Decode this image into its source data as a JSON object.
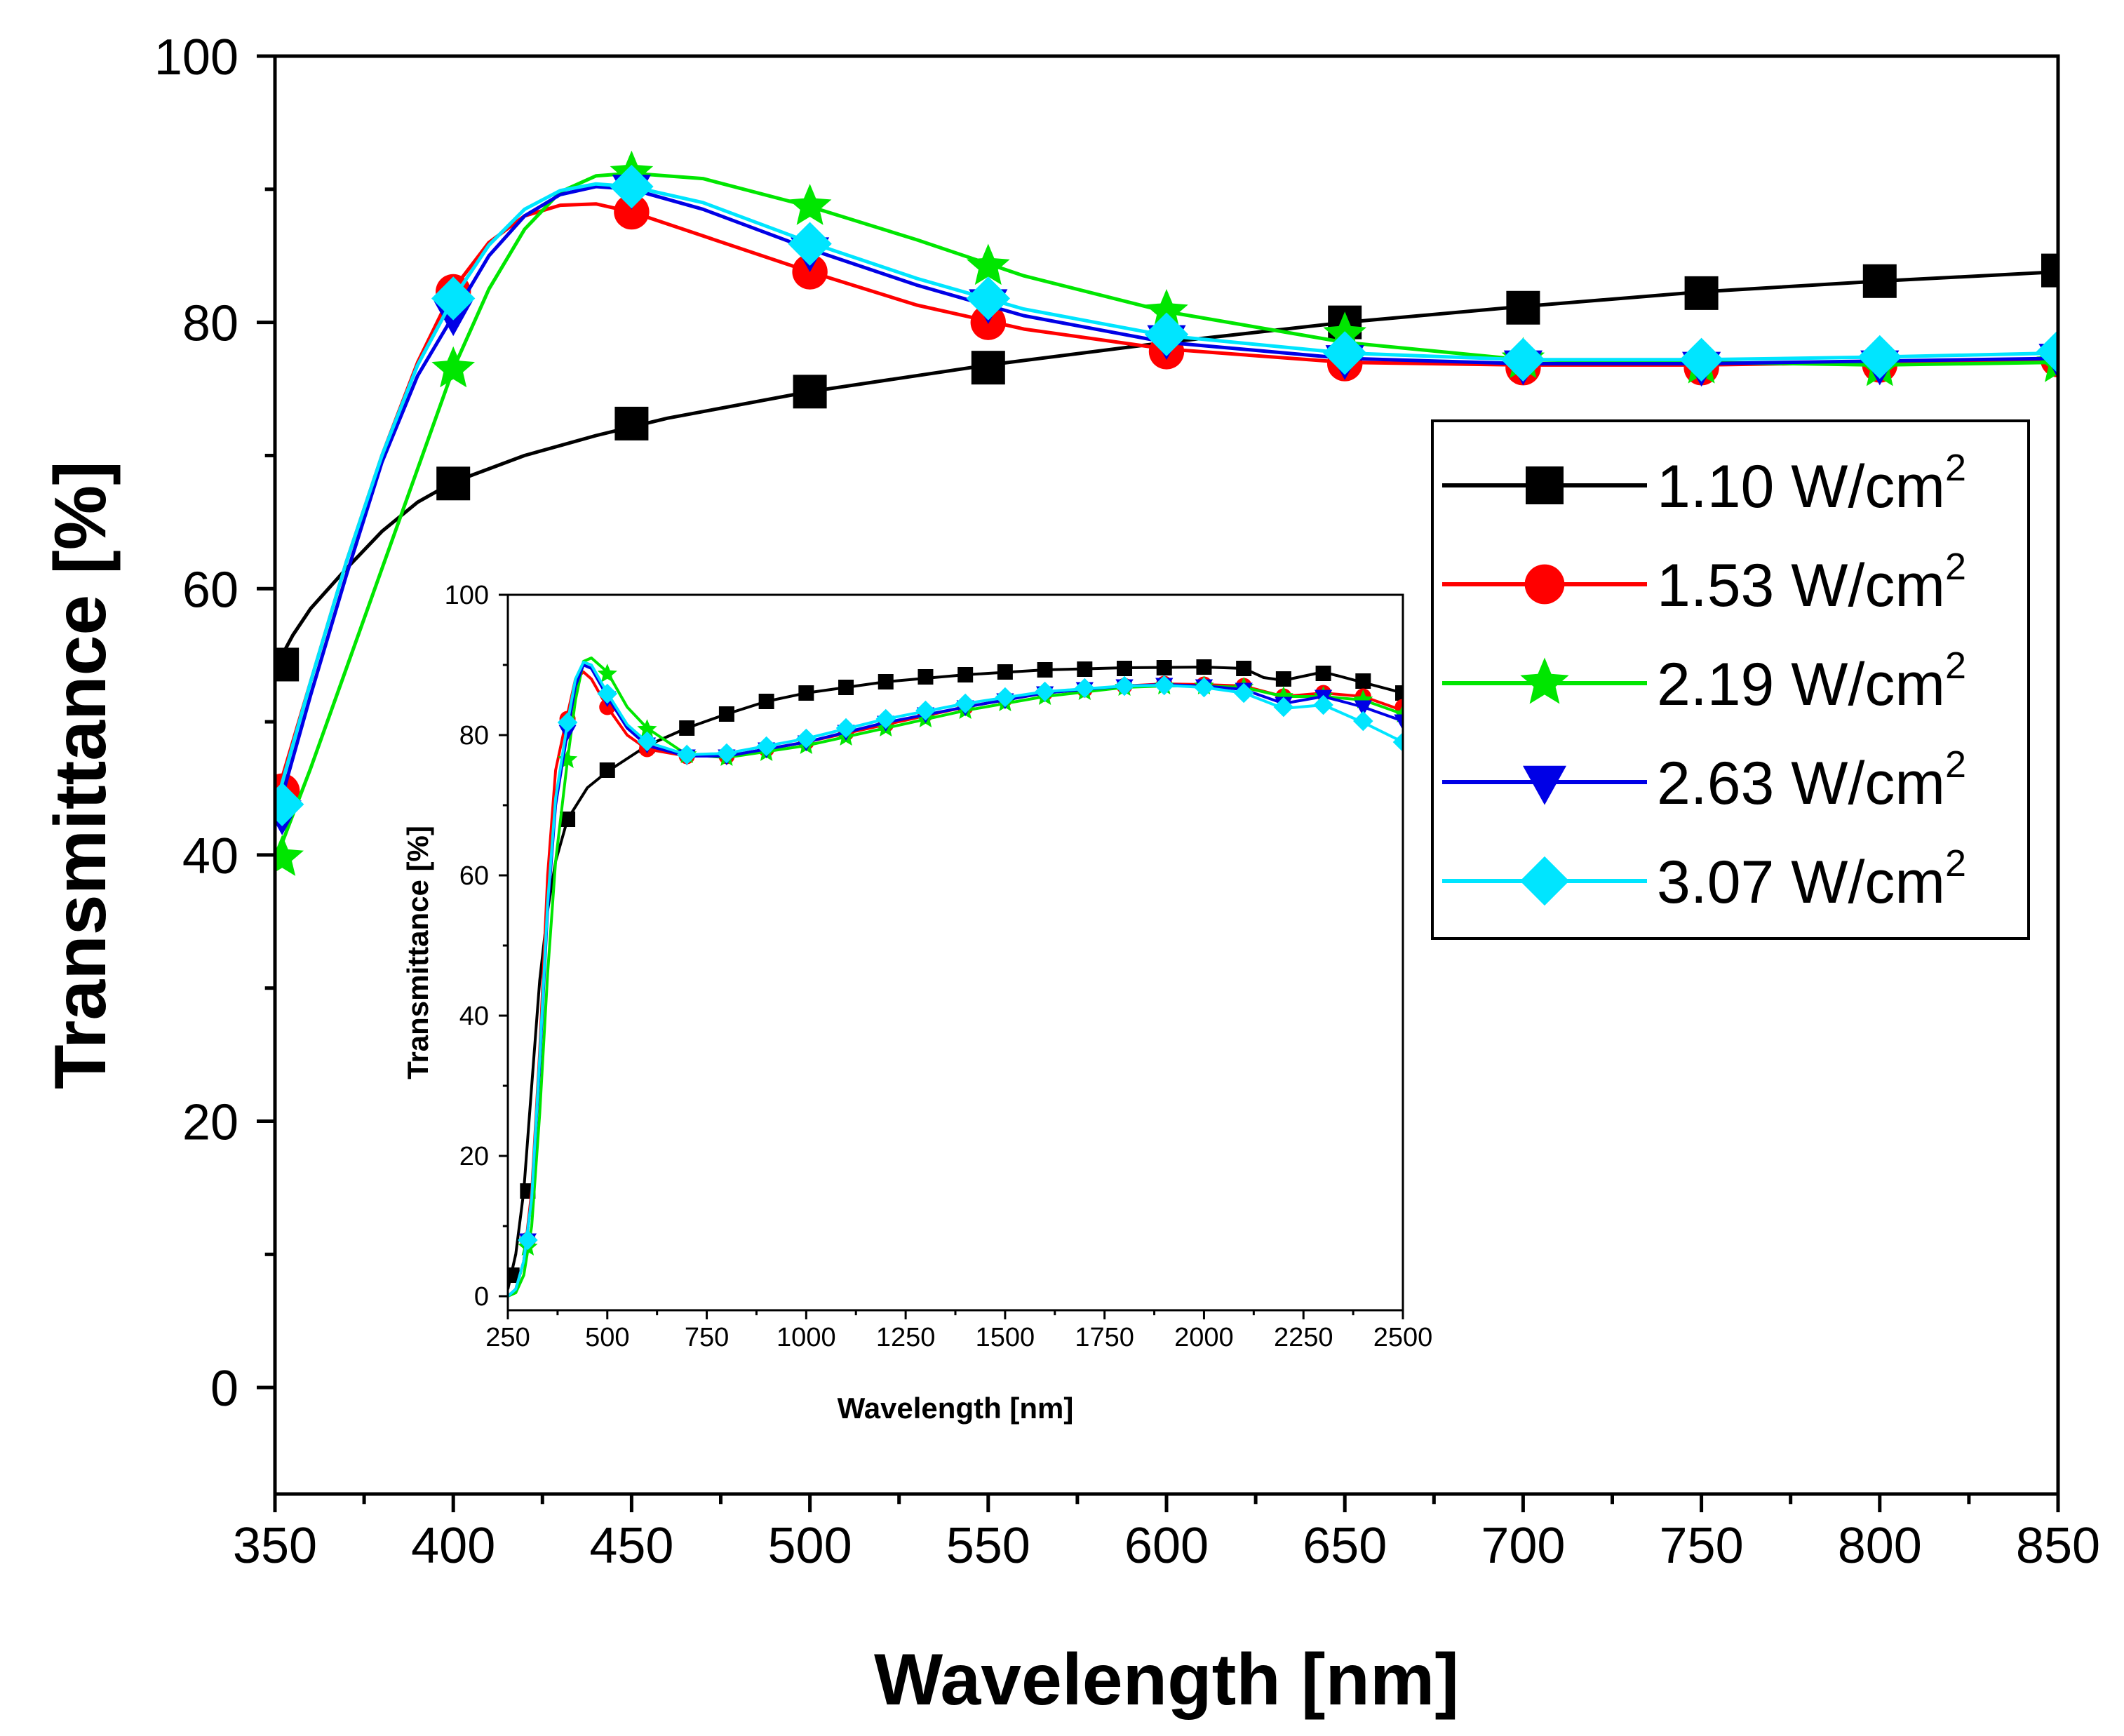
{
  "chart_data": [
    {
      "id": "main",
      "type": "line",
      "title": "",
      "xlabel": "Wavelength [nm]",
      "ylabel": "Transmittance [%]",
      "xlim": [
        350,
        850
      ],
      "ylim": [
        -8,
        100
      ],
      "xticks": [
        350,
        400,
        450,
        500,
        550,
        600,
        650,
        700,
        750,
        800,
        850
      ],
      "yticks": [
        0,
        20,
        40,
        60,
        80,
        100
      ],
      "xtick_labels": [
        "350",
        "400",
        "450",
        "500",
        "550",
        "600",
        "650",
        "700",
        "750",
        "800",
        "850"
      ],
      "ytick_labels": [
        "0",
        "20",
        "40",
        "60",
        "80",
        "100"
      ],
      "legend_position": "right",
      "series": [
        {
          "name": "1.10 W/cm",
          "sup": "2",
          "color": "#000000",
          "marker": "square",
          "line_x": [
            350,
            355,
            360,
            370,
            380,
            390,
            400,
            420,
            440,
            460,
            480,
            500,
            550,
            600,
            650,
            700,
            750,
            800,
            850
          ],
          "line_y": [
            54,
            56.5,
            58.5,
            61.5,
            64.3,
            66.5,
            68,
            70,
            71.5,
            72.8,
            73.8,
            74.8,
            76.8,
            78.5,
            80,
            81.2,
            82.3,
            83.1,
            83.8
          ],
          "marker_x": [
            352,
            400,
            450,
            500,
            550,
            650,
            700,
            750,
            800,
            850
          ],
          "marker_y": [
            54.3,
            67.9,
            72.4,
            74.8,
            76.6,
            80.0,
            81.1,
            82.2,
            83.1,
            83.9
          ]
        },
        {
          "name": "1.53 W/cm",
          "sup": "2",
          "color": "#ff0000",
          "marker": "circle",
          "line_x": [
            350,
            360,
            370,
            380,
            390,
            400,
            410,
            420,
            430,
            440,
            450,
            470,
            500,
            530,
            560,
            600,
            650,
            700,
            750,
            800,
            850
          ],
          "line_y": [
            44,
            53,
            62,
            70,
            77,
            82.5,
            86,
            88,
            88.8,
            88.9,
            88.3,
            86.5,
            83.8,
            81.3,
            79.5,
            78,
            77,
            76.8,
            76.8,
            77,
            77.2
          ],
          "marker_x": [
            352,
            400,
            450,
            500,
            550,
            600,
            650,
            700,
            750,
            800,
            850
          ],
          "marker_y": [
            44.8,
            82.3,
            88.3,
            83.8,
            80.0,
            77.8,
            76.9,
            76.6,
            76.6,
            76.8,
            77.2
          ]
        },
        {
          "name": "2.19 W/cm",
          "sup": "2",
          "color": "#00e600",
          "marker": "star",
          "line_x": [
            350,
            360,
            370,
            380,
            390,
            400,
            410,
            420,
            430,
            440,
            450,
            470,
            500,
            530,
            560,
            600,
            650,
            700,
            750,
            800,
            850
          ],
          "line_y": [
            39.5,
            46.5,
            54,
            61.5,
            69,
            76.5,
            82.5,
            87,
            89.8,
            91,
            91.2,
            90.8,
            88.7,
            86.2,
            83.5,
            80.8,
            78.5,
            77.2,
            77,
            76.8,
            77
          ],
          "marker_x": [
            352,
            400,
            450,
            500,
            550,
            600,
            650,
            700,
            750,
            800,
            850
          ],
          "marker_y": [
            39.8,
            76.5,
            91.2,
            88.7,
            84.2,
            80.8,
            79.1,
            77.2,
            76.8,
            76.6,
            76.9
          ]
        },
        {
          "name": "2.63 W/cm",
          "sup": "2",
          "color": "#0000e6",
          "marker": "triangle-down",
          "line_x": [
            350,
            360,
            370,
            380,
            390,
            400,
            410,
            420,
            430,
            440,
            450,
            470,
            500,
            530,
            560,
            600,
            650,
            700,
            750,
            800,
            850
          ],
          "line_y": [
            42.5,
            52,
            61,
            69.5,
            76,
            80.5,
            85,
            88,
            89.6,
            90.2,
            90,
            88.5,
            85.5,
            82.8,
            80.5,
            78.5,
            77.3,
            76.9,
            76.9,
            77.1,
            77.3
          ],
          "marker_x": [
            352,
            400,
            450,
            500,
            550,
            600,
            650,
            700,
            750,
            800,
            850
          ],
          "marker_y": [
            43.0,
            80.5,
            90.0,
            85.3,
            81.4,
            78.7,
            77.2,
            76.8,
            76.7,
            76.8,
            77.3
          ]
        },
        {
          "name": "3.07 W/cm",
          "sup": "2",
          "color": "#00e5ff",
          "marker": "diamond",
          "line_x": [
            350,
            360,
            370,
            380,
            390,
            400,
            410,
            420,
            430,
            440,
            450,
            470,
            500,
            530,
            560,
            600,
            650,
            700,
            750,
            800,
            850
          ],
          "line_y": [
            43.5,
            53,
            62,
            70,
            76.8,
            81.8,
            85.8,
            88.5,
            89.9,
            90.4,
            90.2,
            89,
            86,
            83.3,
            81,
            79,
            77.7,
            77.2,
            77.2,
            77.4,
            77.7
          ],
          "marker_x": [
            352,
            400,
            450,
            500,
            550,
            600,
            650,
            700,
            750,
            800,
            850
          ],
          "marker_y": [
            43.8,
            81.8,
            90.2,
            85.9,
            81.8,
            79.1,
            77.7,
            77.2,
            77.2,
            77.4,
            77.8
          ]
        }
      ]
    },
    {
      "id": "inset",
      "type": "line",
      "title": "",
      "xlabel": "Wavelength [nm]",
      "ylabel": "Transmittance [%]",
      "xlim": [
        250,
        2500
      ],
      "ylim": [
        -2,
        100
      ],
      "xticks": [
        250,
        500,
        750,
        1000,
        1250,
        1500,
        1750,
        2000,
        2250,
        2500
      ],
      "yticks": [
        0,
        20,
        40,
        60,
        80,
        100
      ],
      "xtick_labels": [
        "250",
        "500",
        "750",
        "1000",
        "1250",
        "1500",
        "1750",
        "2000",
        "2250",
        "2500"
      ],
      "ytick_labels": [
        "0",
        "20",
        "40",
        "60",
        "80",
        "100"
      ],
      "series": [
        {
          "name": "1.10 W/cm2",
          "color": "#000000",
          "marker": "square",
          "line_x": [
            250,
            270,
            290,
            310,
            330,
            350,
            370,
            400,
            450,
            500,
            600,
            700,
            800,
            900,
            1000,
            1200,
            1400,
            1600,
            1800,
            2000,
            2100,
            2150,
            2200,
            2300,
            2400,
            2500
          ],
          "line_y": [
            1,
            6,
            15,
            30,
            45,
            55,
            62,
            68,
            72.5,
            74.8,
            78.5,
            81,
            83,
            84.8,
            86,
            87.6,
            88.6,
            89.3,
            89.6,
            89.7,
            89.5,
            88.2,
            87.8,
            89,
            87.5,
            86
          ],
          "marker_x": [
            260,
            300,
            400,
            500,
            600,
            700,
            800,
            900,
            1000,
            1100,
            1200,
            1300,
            1400,
            1500,
            1600,
            1700,
            1800,
            1900,
            2000,
            2100,
            2200,
            2300,
            2400,
            2500
          ],
          "marker_y": [
            3,
            15,
            68,
            75,
            78.5,
            81,
            83,
            84.8,
            86,
            86.8,
            87.6,
            88.3,
            88.6,
            89,
            89.3,
            89.4,
            89.5,
            89.6,
            89.7,
            89.5,
            88,
            88.8,
            87.7,
            86
          ]
        },
        {
          "name": "1.53 W/cm2",
          "color": "#ff0000",
          "marker": "circle",
          "line_x": [
            250,
            270,
            290,
            310,
            330,
            350,
            370,
            400,
            420,
            440,
            460,
            500,
            550,
            600,
            700,
            800,
            1000,
            1200,
            1400,
            1600,
            1800,
            1900,
            2000,
            2100,
            2200,
            2300,
            2400,
            2500
          ],
          "line_y": [
            0,
            1,
            5,
            15,
            35,
            60,
            75,
            83,
            88,
            89,
            88,
            84,
            80,
            78,
            77,
            77,
            79,
            81.5,
            84,
            86,
            87,
            87.3,
            87.2,
            87,
            85.5,
            86,
            85.5,
            83.5
          ],
          "marker_x": [
            300,
            400,
            500,
            600,
            700,
            800,
            900,
            1000,
            1100,
            1200,
            1300,
            1400,
            1500,
            1600,
            1700,
            1800,
            1900,
            2000,
            2100,
            2200,
            2300,
            2400,
            2500
          ],
          "marker_y": [
            8,
            82.3,
            84,
            78,
            77,
            77,
            78,
            79,
            80.3,
            81.5,
            83,
            84,
            85.2,
            86,
            86.5,
            87,
            87.3,
            87.2,
            87,
            85.5,
            86,
            85.5,
            84
          ]
        },
        {
          "name": "2.19 W/cm2",
          "color": "#00e600",
          "marker": "star",
          "line_x": [
            250,
            270,
            290,
            310,
            330,
            350,
            370,
            400,
            420,
            440,
            460,
            500,
            550,
            600,
            700,
            800,
            1000,
            1200,
            1400,
            1600,
            1800,
            1900,
            2000,
            2100,
            2200,
            2300,
            2400,
            2500
          ],
          "line_y": [
            0,
            0.5,
            3,
            10,
            26,
            46,
            62,
            76.5,
            85,
            90.5,
            91,
            89,
            84,
            81,
            77.2,
            76.8,
            78.5,
            81,
            83.5,
            85.5,
            86.8,
            87,
            87,
            86.8,
            85.5,
            85.5,
            85,
            83
          ],
          "marker_x": [
            300,
            400,
            500,
            600,
            700,
            800,
            900,
            1000,
            1100,
            1200,
            1300,
            1400,
            1500,
            1600,
            1700,
            1800,
            1900,
            2000,
            2100,
            2200,
            2300,
            2400,
            2500
          ],
          "marker_y": [
            7,
            76.5,
            88.7,
            80.8,
            77.2,
            76.8,
            77.5,
            78.5,
            79.7,
            81,
            82.3,
            83.5,
            84.6,
            85.5,
            86.2,
            86.8,
            87,
            87,
            86.8,
            85.5,
            85.5,
            85,
            83
          ]
        },
        {
          "name": "2.63 W/cm2",
          "color": "#0000e6",
          "marker": "triangle-down",
          "line_x": [
            250,
            270,
            290,
            310,
            330,
            350,
            370,
            400,
            420,
            440,
            460,
            500,
            550,
            600,
            700,
            800,
            1000,
            1200,
            1400,
            1600,
            1800,
            1900,
            2000,
            2100,
            2200,
            2300,
            2400,
            2500
          ],
          "line_y": [
            0,
            1,
            5,
            14,
            33,
            55,
            70,
            80.5,
            87,
            90,
            89.5,
            85.5,
            81,
            78.5,
            77,
            77,
            79,
            81.8,
            84,
            86,
            87,
            87.2,
            87,
            86.5,
            84.5,
            85.5,
            84,
            82
          ],
          "marker_x": [
            300,
            400,
            500,
            600,
            700,
            800,
            900,
            1000,
            1100,
            1200,
            1300,
            1400,
            1500,
            1600,
            1700,
            1800,
            1900,
            2000,
            2100,
            2200,
            2300,
            2400,
            2500
          ],
          "marker_y": [
            8,
            80.5,
            85.3,
            78.7,
            77,
            77,
            78,
            79,
            80.5,
            81.8,
            83,
            84,
            85,
            86,
            86.6,
            87,
            87.2,
            87,
            86.5,
            84.5,
            85.5,
            84,
            82
          ]
        },
        {
          "name": "3.07 W/cm2",
          "color": "#00e5ff",
          "marker": "diamond",
          "line_x": [
            250,
            270,
            290,
            310,
            330,
            350,
            370,
            400,
            420,
            440,
            460,
            500,
            550,
            600,
            700,
            800,
            1000,
            1200,
            1400,
            1600,
            1800,
            1900,
            2000,
            2100,
            2200,
            2300,
            2400,
            2500
          ],
          "line_y": [
            0,
            1,
            5,
            14,
            34,
            56,
            71,
            81.8,
            88,
            90.4,
            90,
            86,
            81.5,
            79,
            77.2,
            77.4,
            79.5,
            82.3,
            84.5,
            86.2,
            87,
            87.1,
            86.8,
            86,
            83.8,
            84.3,
            81.8,
            79
          ],
          "marker_x": [
            300,
            400,
            500,
            600,
            700,
            800,
            900,
            1000,
            1100,
            1200,
            1300,
            1400,
            1500,
            1600,
            1700,
            1800,
            1900,
            2000,
            2100,
            2200,
            2300,
            2400,
            2500
          ],
          "marker_y": [
            8,
            81.8,
            85.9,
            79.1,
            77.2,
            77.4,
            78.4,
            79.5,
            81,
            82.3,
            83.5,
            84.5,
            85.4,
            86.2,
            86.7,
            87,
            87.1,
            86.8,
            86,
            84,
            84.3,
            82,
            79
          ]
        }
      ]
    }
  ]
}
